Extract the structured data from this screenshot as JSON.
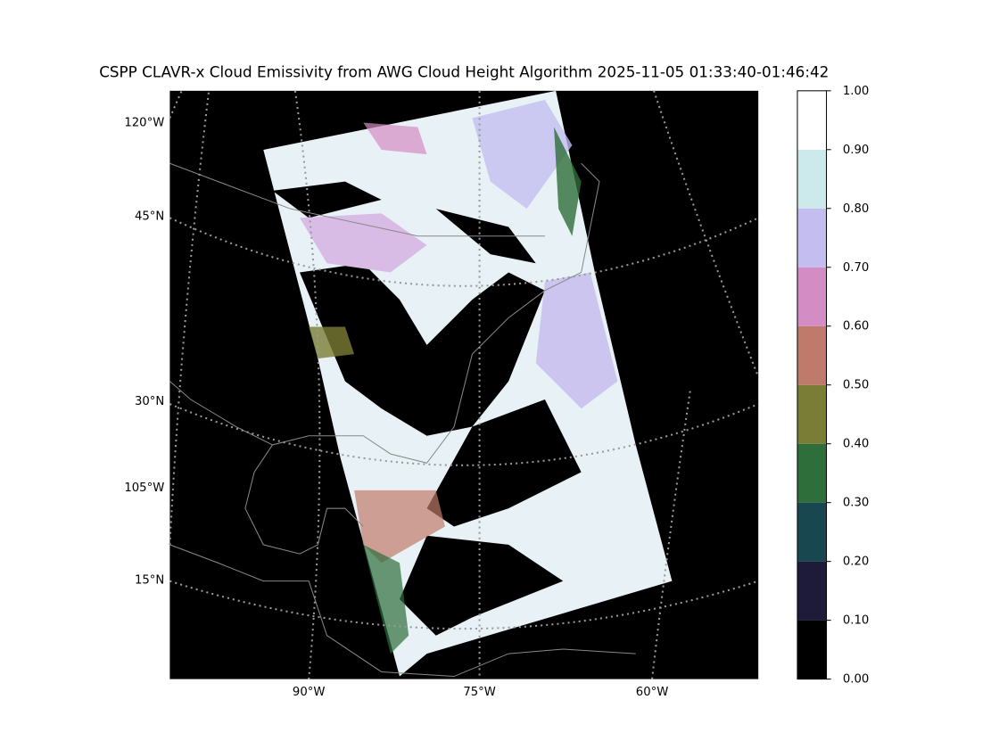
{
  "title": "CSPP CLAVR-x Cloud Emissivity from AWG Cloud Height Algorithm 2025-11-05 01:33:40-01:46:42",
  "map": {
    "left_labels": [
      "120°W",
      "45°N",
      "30°N",
      "105°W",
      "15°N"
    ],
    "bottom_labels": [
      "90°W",
      "75°W",
      "60°W"
    ]
  },
  "colorbar": {
    "ticks": [
      {
        "value": 0,
        "label": "0.00"
      },
      {
        "value": 0.1,
        "label": "0.10"
      },
      {
        "value": 0.2,
        "label": "0.20"
      },
      {
        "value": 0.3,
        "label": "0.30"
      },
      {
        "value": 0.4,
        "label": "0.40"
      },
      {
        "value": 0.5,
        "label": "0.50"
      },
      {
        "value": 0.6,
        "label": "0.60"
      },
      {
        "value": 0.7,
        "label": "0.70"
      },
      {
        "value": 0.8,
        "label": "0.80"
      },
      {
        "value": 0.9,
        "label": "0.90"
      },
      {
        "value": 1,
        "label": "1.00"
      }
    ],
    "colors": [
      "#000000",
      "#1e1a3a",
      "#18474f",
      "#2e6e3a",
      "#7a7d35",
      "#c07a6b",
      "#d48cc5",
      "#c3bdf0",
      "#cce9ec",
      "#ffffff"
    ]
  }
}
